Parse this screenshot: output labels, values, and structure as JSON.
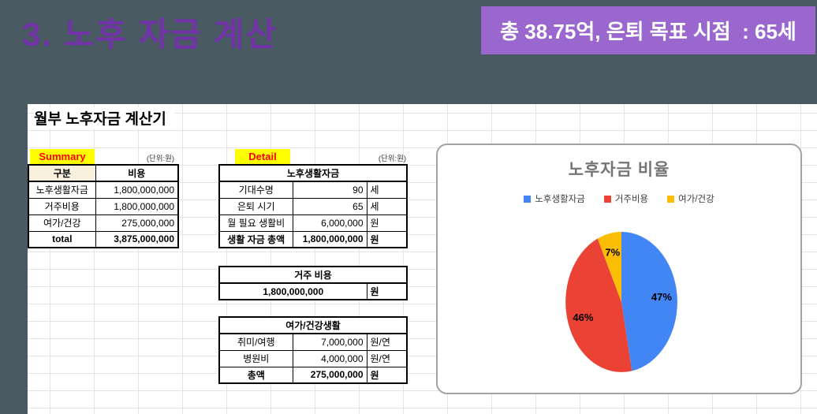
{
  "slide": {
    "title": "3. 노후 자금 계산",
    "badge": "총 38.75억, 은퇴 목표 시점  : 65세",
    "colors": {
      "background": "#4a5a62",
      "title_text": "#7232a8",
      "badge_bg": "#9a67cf",
      "badge_text": "#ffffff"
    }
  },
  "sheet": {
    "title": "월부 노후자금 계산기",
    "summary": {
      "label": "Summary",
      "unit_note": "(단위:원)",
      "headers": [
        "구분",
        "비용"
      ],
      "rows": [
        {
          "label": "노후생활자금",
          "value": "1,800,000,000",
          "bold": false
        },
        {
          "label": "거주비용",
          "value": "1,800,000,000",
          "bold": false
        },
        {
          "label": "여가/건강",
          "value": "275,000,000",
          "bold": false
        },
        {
          "label": "total",
          "value": "3,875,000,000",
          "bold": true
        }
      ]
    },
    "detail": {
      "label": "Detail",
      "unit_note": "(단위:원)",
      "tables": [
        {
          "title": "노후생활자금",
          "rows": [
            {
              "label": "기대수명",
              "value": "90",
              "unit": "세",
              "bold": false
            },
            {
              "label": "은퇴 시기",
              "value": "65",
              "unit": "세",
              "bold": false
            },
            {
              "label": "월 필요 생활비",
              "value": "6,000,000",
              "unit": "원",
              "bold": false
            },
            {
              "label": "생활 자금 총액",
              "value": "1,800,000,000",
              "unit": "원",
              "bold": true
            }
          ]
        },
        {
          "title": "거주 비용",
          "rows": [
            {
              "label": "",
              "value": "1,800,000,000",
              "unit": "원",
              "bold": true,
              "span": true
            }
          ]
        },
        {
          "title": "여가/건강생활",
          "rows": [
            {
              "label": "취미/여행",
              "value": "7,000,000",
              "unit": "원/연",
              "bold": false
            },
            {
              "label": "병원비",
              "value": "4,000,000",
              "unit": "원/연",
              "bold": false
            },
            {
              "label": "총액",
              "value": "275,000,000",
              "unit": "원",
              "bold": true
            }
          ]
        }
      ]
    }
  },
  "chart_data": {
    "type": "pie",
    "title": "노후자금 비율",
    "labels": [
      "노후생활자금",
      "거주비용",
      "여가/건강"
    ],
    "values": [
      47,
      46,
      7
    ],
    "value_format": "percent",
    "colors": [
      "#4285F4",
      "#EA4335",
      "#FBBC04"
    ],
    "legend_position": "top",
    "start_angle_deg": 0,
    "direction": "clockwise"
  }
}
